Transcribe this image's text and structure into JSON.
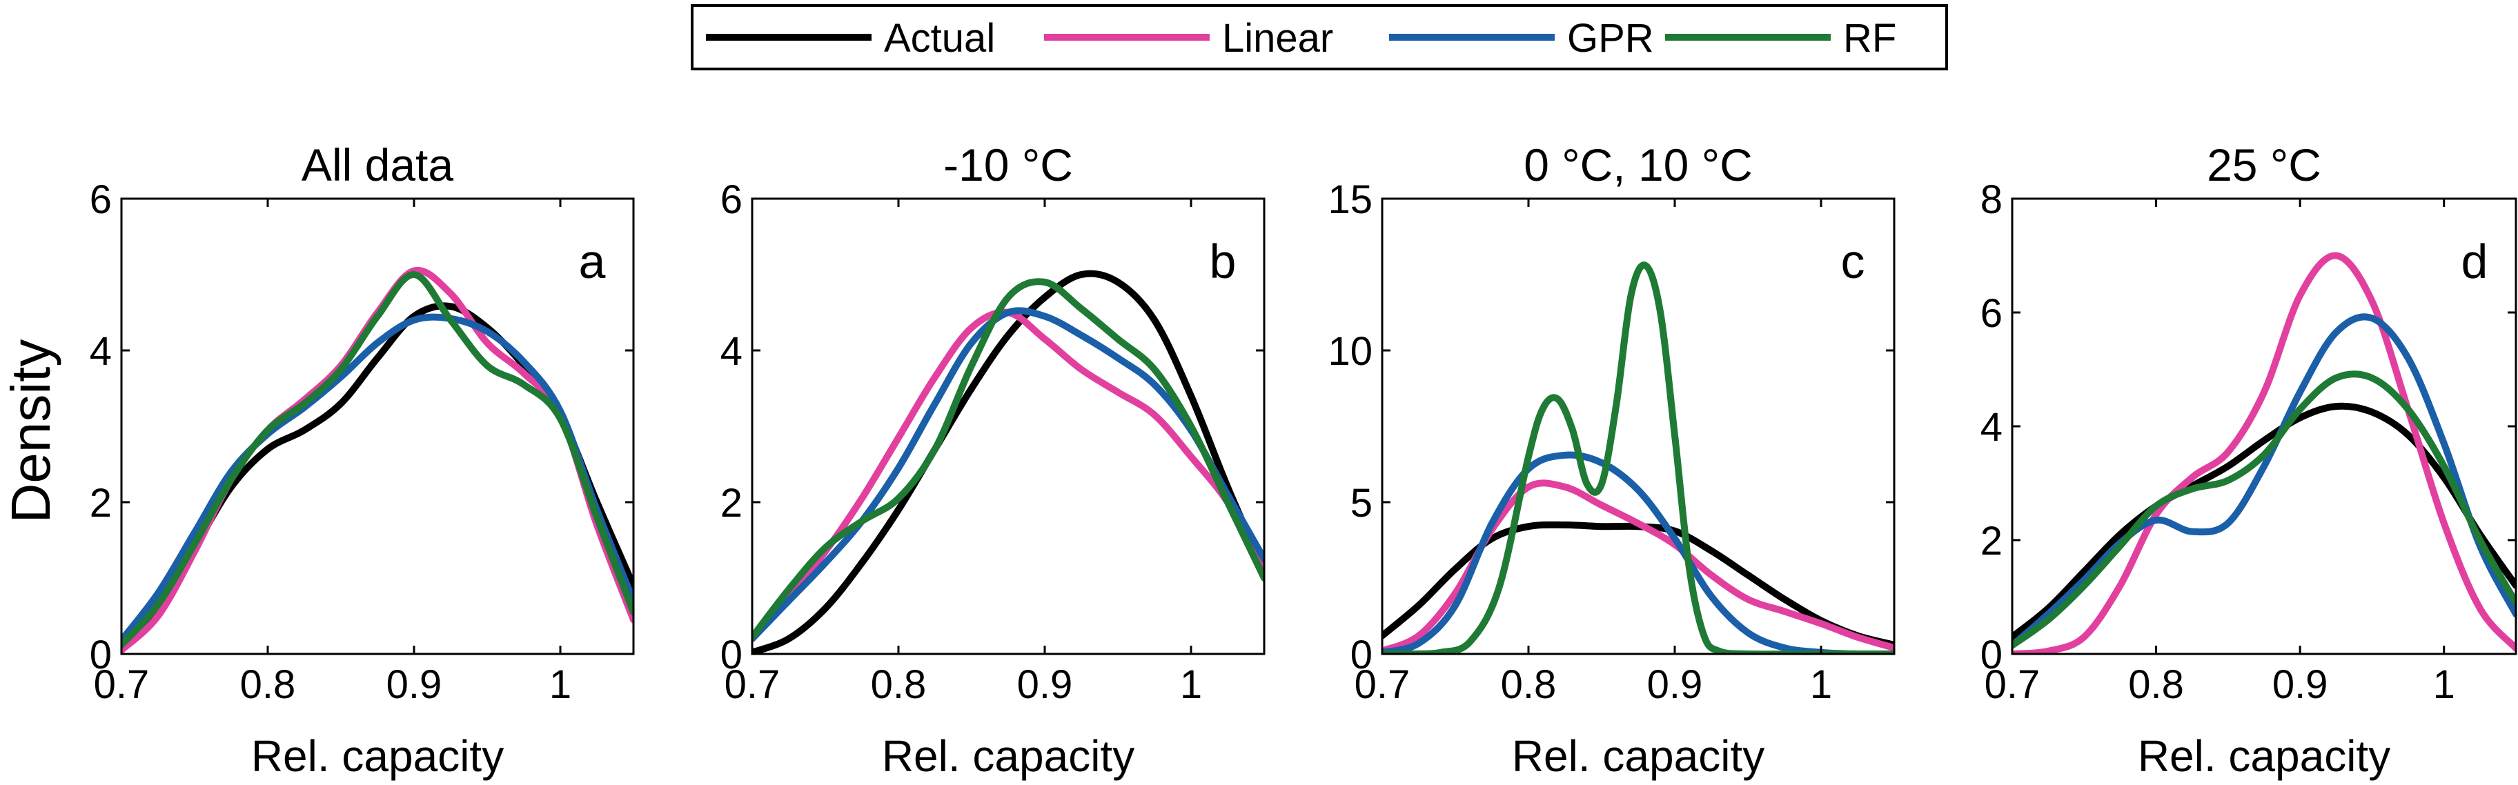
{
  "figure": {
    "ylabel": "Density",
    "xlabel": "Rel. capacity"
  },
  "legend": {
    "placement": "top-center",
    "items": [
      {
        "label": "Actual",
        "color": "#000000"
      },
      {
        "label": "Linear",
        "color": "#e2409f"
      },
      {
        "label": "GPR",
        "color": "#1a5fa8"
      },
      {
        "label": "RF",
        "color": "#1f7a35"
      }
    ]
  },
  "chart_data": [
    {
      "type": "line",
      "title": "All data",
      "panel_letter": "a",
      "xlabel": "Rel. capacity",
      "xlim": [
        0.7,
        1.05
      ],
      "ylim": [
        0,
        6
      ],
      "xticks": [
        "0.7",
        "0.8",
        "0.9",
        "1"
      ],
      "yticks": [
        "0",
        "2",
        "4",
        "6"
      ],
      "series": [
        {
          "name": "Actual",
          "x": [
            0.7,
            0.725,
            0.75,
            0.775,
            0.8,
            0.825,
            0.85,
            0.875,
            0.9,
            0.925,
            0.95,
            0.975,
            1.0,
            1.025,
            1.05
          ],
          "y": [
            0.08,
            0.6,
            1.4,
            2.2,
            2.7,
            2.95,
            3.3,
            3.9,
            4.45,
            4.58,
            4.3,
            3.8,
            3.15,
            2.0,
            0.9
          ]
        },
        {
          "name": "Linear",
          "x": [
            0.7,
            0.725,
            0.75,
            0.775,
            0.8,
            0.825,
            0.85,
            0.875,
            0.9,
            0.925,
            0.95,
            0.975,
            1.0,
            1.025,
            1.05
          ],
          "y": [
            0.05,
            0.5,
            1.35,
            2.3,
            2.95,
            3.35,
            3.8,
            4.5,
            5.05,
            4.75,
            4.1,
            3.7,
            3.15,
            1.7,
            0.45
          ]
        },
        {
          "name": "GPR",
          "x": [
            0.7,
            0.725,
            0.75,
            0.775,
            0.8,
            0.825,
            0.85,
            0.875,
            0.9,
            0.925,
            0.95,
            0.975,
            1.0,
            1.025,
            1.05
          ],
          "y": [
            0.18,
            0.8,
            1.6,
            2.4,
            2.9,
            3.25,
            3.65,
            4.1,
            4.4,
            4.42,
            4.25,
            3.85,
            3.2,
            1.9,
            0.7
          ]
        },
        {
          "name": "RF",
          "x": [
            0.7,
            0.725,
            0.75,
            0.775,
            0.8,
            0.825,
            0.85,
            0.875,
            0.9,
            0.925,
            0.95,
            0.975,
            1.0,
            1.025,
            1.05
          ],
          "y": [
            0.12,
            0.65,
            1.45,
            2.3,
            2.95,
            3.3,
            3.75,
            4.45,
            5.0,
            4.4,
            3.8,
            3.55,
            3.1,
            1.8,
            0.55
          ]
        }
      ]
    },
    {
      "type": "line",
      "title": "-10 °C",
      "panel_letter": "b",
      "xlabel": "Rel. capacity",
      "xlim": [
        0.7,
        1.05
      ],
      "ylim": [
        0,
        6
      ],
      "xticks": [
        "0.7",
        "0.8",
        "0.9",
        "1"
      ],
      "yticks": [
        "0",
        "2",
        "4",
        "6"
      ],
      "series": [
        {
          "name": "Actual",
          "x": [
            0.7,
            0.725,
            0.75,
            0.775,
            0.8,
            0.825,
            0.85,
            0.875,
            0.9,
            0.925,
            0.95,
            0.975,
            1.0,
            1.025,
            1.05
          ],
          "y": [
            0.02,
            0.2,
            0.6,
            1.2,
            1.9,
            2.7,
            3.5,
            4.2,
            4.7,
            5.0,
            4.9,
            4.4,
            3.4,
            2.2,
            1.1
          ]
        },
        {
          "name": "Linear",
          "x": [
            0.7,
            0.725,
            0.75,
            0.775,
            0.8,
            0.825,
            0.85,
            0.875,
            0.9,
            0.925,
            0.95,
            0.975,
            1.0,
            1.025,
            1.05
          ],
          "y": [
            0.2,
            0.75,
            1.35,
            2.05,
            2.85,
            3.65,
            4.3,
            4.5,
            4.15,
            3.75,
            3.45,
            3.15,
            2.6,
            2.0,
            1.15
          ]
        },
        {
          "name": "GPR",
          "x": [
            0.7,
            0.725,
            0.75,
            0.775,
            0.8,
            0.825,
            0.85,
            0.875,
            0.9,
            0.925,
            0.95,
            0.975,
            1.0,
            1.025,
            1.05
          ],
          "y": [
            0.2,
            0.7,
            1.2,
            1.75,
            2.45,
            3.3,
            4.1,
            4.5,
            4.45,
            4.2,
            3.9,
            3.55,
            2.95,
            2.1,
            1.25
          ]
        },
        {
          "name": "RF",
          "x": [
            0.7,
            0.725,
            0.75,
            0.775,
            0.8,
            0.825,
            0.85,
            0.875,
            0.9,
            0.925,
            0.95,
            0.975,
            1.0,
            1.025,
            1.05
          ],
          "y": [
            0.22,
            0.85,
            1.4,
            1.75,
            2.05,
            2.7,
            3.8,
            4.7,
            4.9,
            4.55,
            4.15,
            3.75,
            3.0,
            2.0,
            1.0
          ]
        }
      ]
    },
    {
      "type": "line",
      "title": "0 °C, 10 °C",
      "panel_letter": "c",
      "xlabel": "Rel. capacity",
      "xlim": [
        0.7,
        1.05
      ],
      "ylim": [
        0,
        15
      ],
      "xticks": [
        "0.7",
        "0.8",
        "0.9",
        "1"
      ],
      "yticks": [
        "0",
        "5",
        "10",
        "15"
      ],
      "series": [
        {
          "name": "Actual",
          "x": [
            0.7,
            0.725,
            0.75,
            0.775,
            0.8,
            0.825,
            0.85,
            0.875,
            0.9,
            0.925,
            0.95,
            0.975,
            1.0,
            1.025,
            1.05
          ],
          "y": [
            0.6,
            1.6,
            2.8,
            3.8,
            4.2,
            4.25,
            4.2,
            4.2,
            4.05,
            3.4,
            2.6,
            1.8,
            1.1,
            0.6,
            0.3
          ]
        },
        {
          "name": "Linear",
          "x": [
            0.7,
            0.725,
            0.75,
            0.775,
            0.8,
            0.825,
            0.85,
            0.875,
            0.9,
            0.925,
            0.95,
            0.975,
            1.0,
            1.025,
            1.05
          ],
          "y": [
            0.1,
            0.6,
            2.0,
            4.1,
            5.5,
            5.5,
            4.9,
            4.3,
            3.6,
            2.6,
            1.8,
            1.4,
            1.0,
            0.55,
            0.2
          ]
        },
        {
          "name": "GPR",
          "x": [
            0.7,
            0.725,
            0.75,
            0.775,
            0.8,
            0.825,
            0.85,
            0.875,
            0.9,
            0.925,
            0.95,
            0.975,
            1.0,
            1.025,
            1.05
          ],
          "y": [
            0.05,
            0.35,
            1.6,
            4.3,
            6.1,
            6.55,
            6.3,
            5.4,
            3.8,
            1.9,
            0.7,
            0.2,
            0.05,
            0.0,
            0.0
          ]
        },
        {
          "name": "RF",
          "x": [
            0.7,
            0.72,
            0.74,
            0.76,
            0.78,
            0.8,
            0.81,
            0.82,
            0.83,
            0.84,
            0.85,
            0.86,
            0.87,
            0.88,
            0.89,
            0.9,
            0.91,
            0.92,
            0.93,
            0.95,
            1.0,
            1.05
          ],
          "y": [
            0.0,
            0.0,
            0.05,
            0.4,
            2.2,
            6.5,
            8.1,
            8.4,
            7.4,
            5.6,
            5.6,
            8.2,
            11.8,
            12.8,
            11.3,
            7.2,
            2.8,
            0.6,
            0.1,
            0.0,
            0.0,
            0.0
          ]
        }
      ]
    },
    {
      "type": "line",
      "title": "25 °C",
      "panel_letter": "d",
      "xlabel": "Rel. capacity",
      "xlim": [
        0.7,
        1.05
      ],
      "ylim": [
        0,
        8
      ],
      "xticks": [
        "0.7",
        "0.8",
        "0.9",
        "1"
      ],
      "yticks": [
        "0",
        "2",
        "4",
        "6",
        "8"
      ],
      "series": [
        {
          "name": "Actual",
          "x": [
            0.7,
            0.725,
            0.75,
            0.775,
            0.8,
            0.825,
            0.85,
            0.875,
            0.9,
            0.925,
            0.95,
            0.975,
            1.0,
            1.025,
            1.05
          ],
          "y": [
            0.3,
            0.8,
            1.45,
            2.1,
            2.6,
            2.95,
            3.3,
            3.75,
            4.15,
            4.35,
            4.25,
            3.85,
            3.1,
            2.1,
            1.2
          ]
        },
        {
          "name": "Linear",
          "x": [
            0.7,
            0.725,
            0.75,
            0.775,
            0.8,
            0.825,
            0.85,
            0.875,
            0.9,
            0.925,
            0.95,
            0.975,
            1.0,
            1.025,
            1.05
          ],
          "y": [
            0.0,
            0.05,
            0.3,
            1.2,
            2.45,
            3.1,
            3.55,
            4.6,
            6.3,
            7.0,
            6.2,
            4.3,
            2.3,
            0.8,
            0.1
          ]
        },
        {
          "name": "GPR",
          "x": [
            0.7,
            0.725,
            0.75,
            0.775,
            0.8,
            0.825,
            0.85,
            0.875,
            0.9,
            0.925,
            0.95,
            0.975,
            1.0,
            1.025,
            1.05
          ],
          "y": [
            0.15,
            0.7,
            1.3,
            1.95,
            2.35,
            2.15,
            2.3,
            3.3,
            4.6,
            5.65,
            5.9,
            5.2,
            3.7,
            1.9,
            0.7
          ]
        },
        {
          "name": "RF",
          "x": [
            0.7,
            0.725,
            0.75,
            0.775,
            0.8,
            0.825,
            0.85,
            0.875,
            0.9,
            0.925,
            0.95,
            0.975,
            1.0,
            1.025,
            1.05
          ],
          "y": [
            0.15,
            0.6,
            1.2,
            1.9,
            2.6,
            2.9,
            3.05,
            3.5,
            4.3,
            4.85,
            4.85,
            4.3,
            3.3,
            2.0,
            0.9
          ]
        }
      ]
    }
  ]
}
